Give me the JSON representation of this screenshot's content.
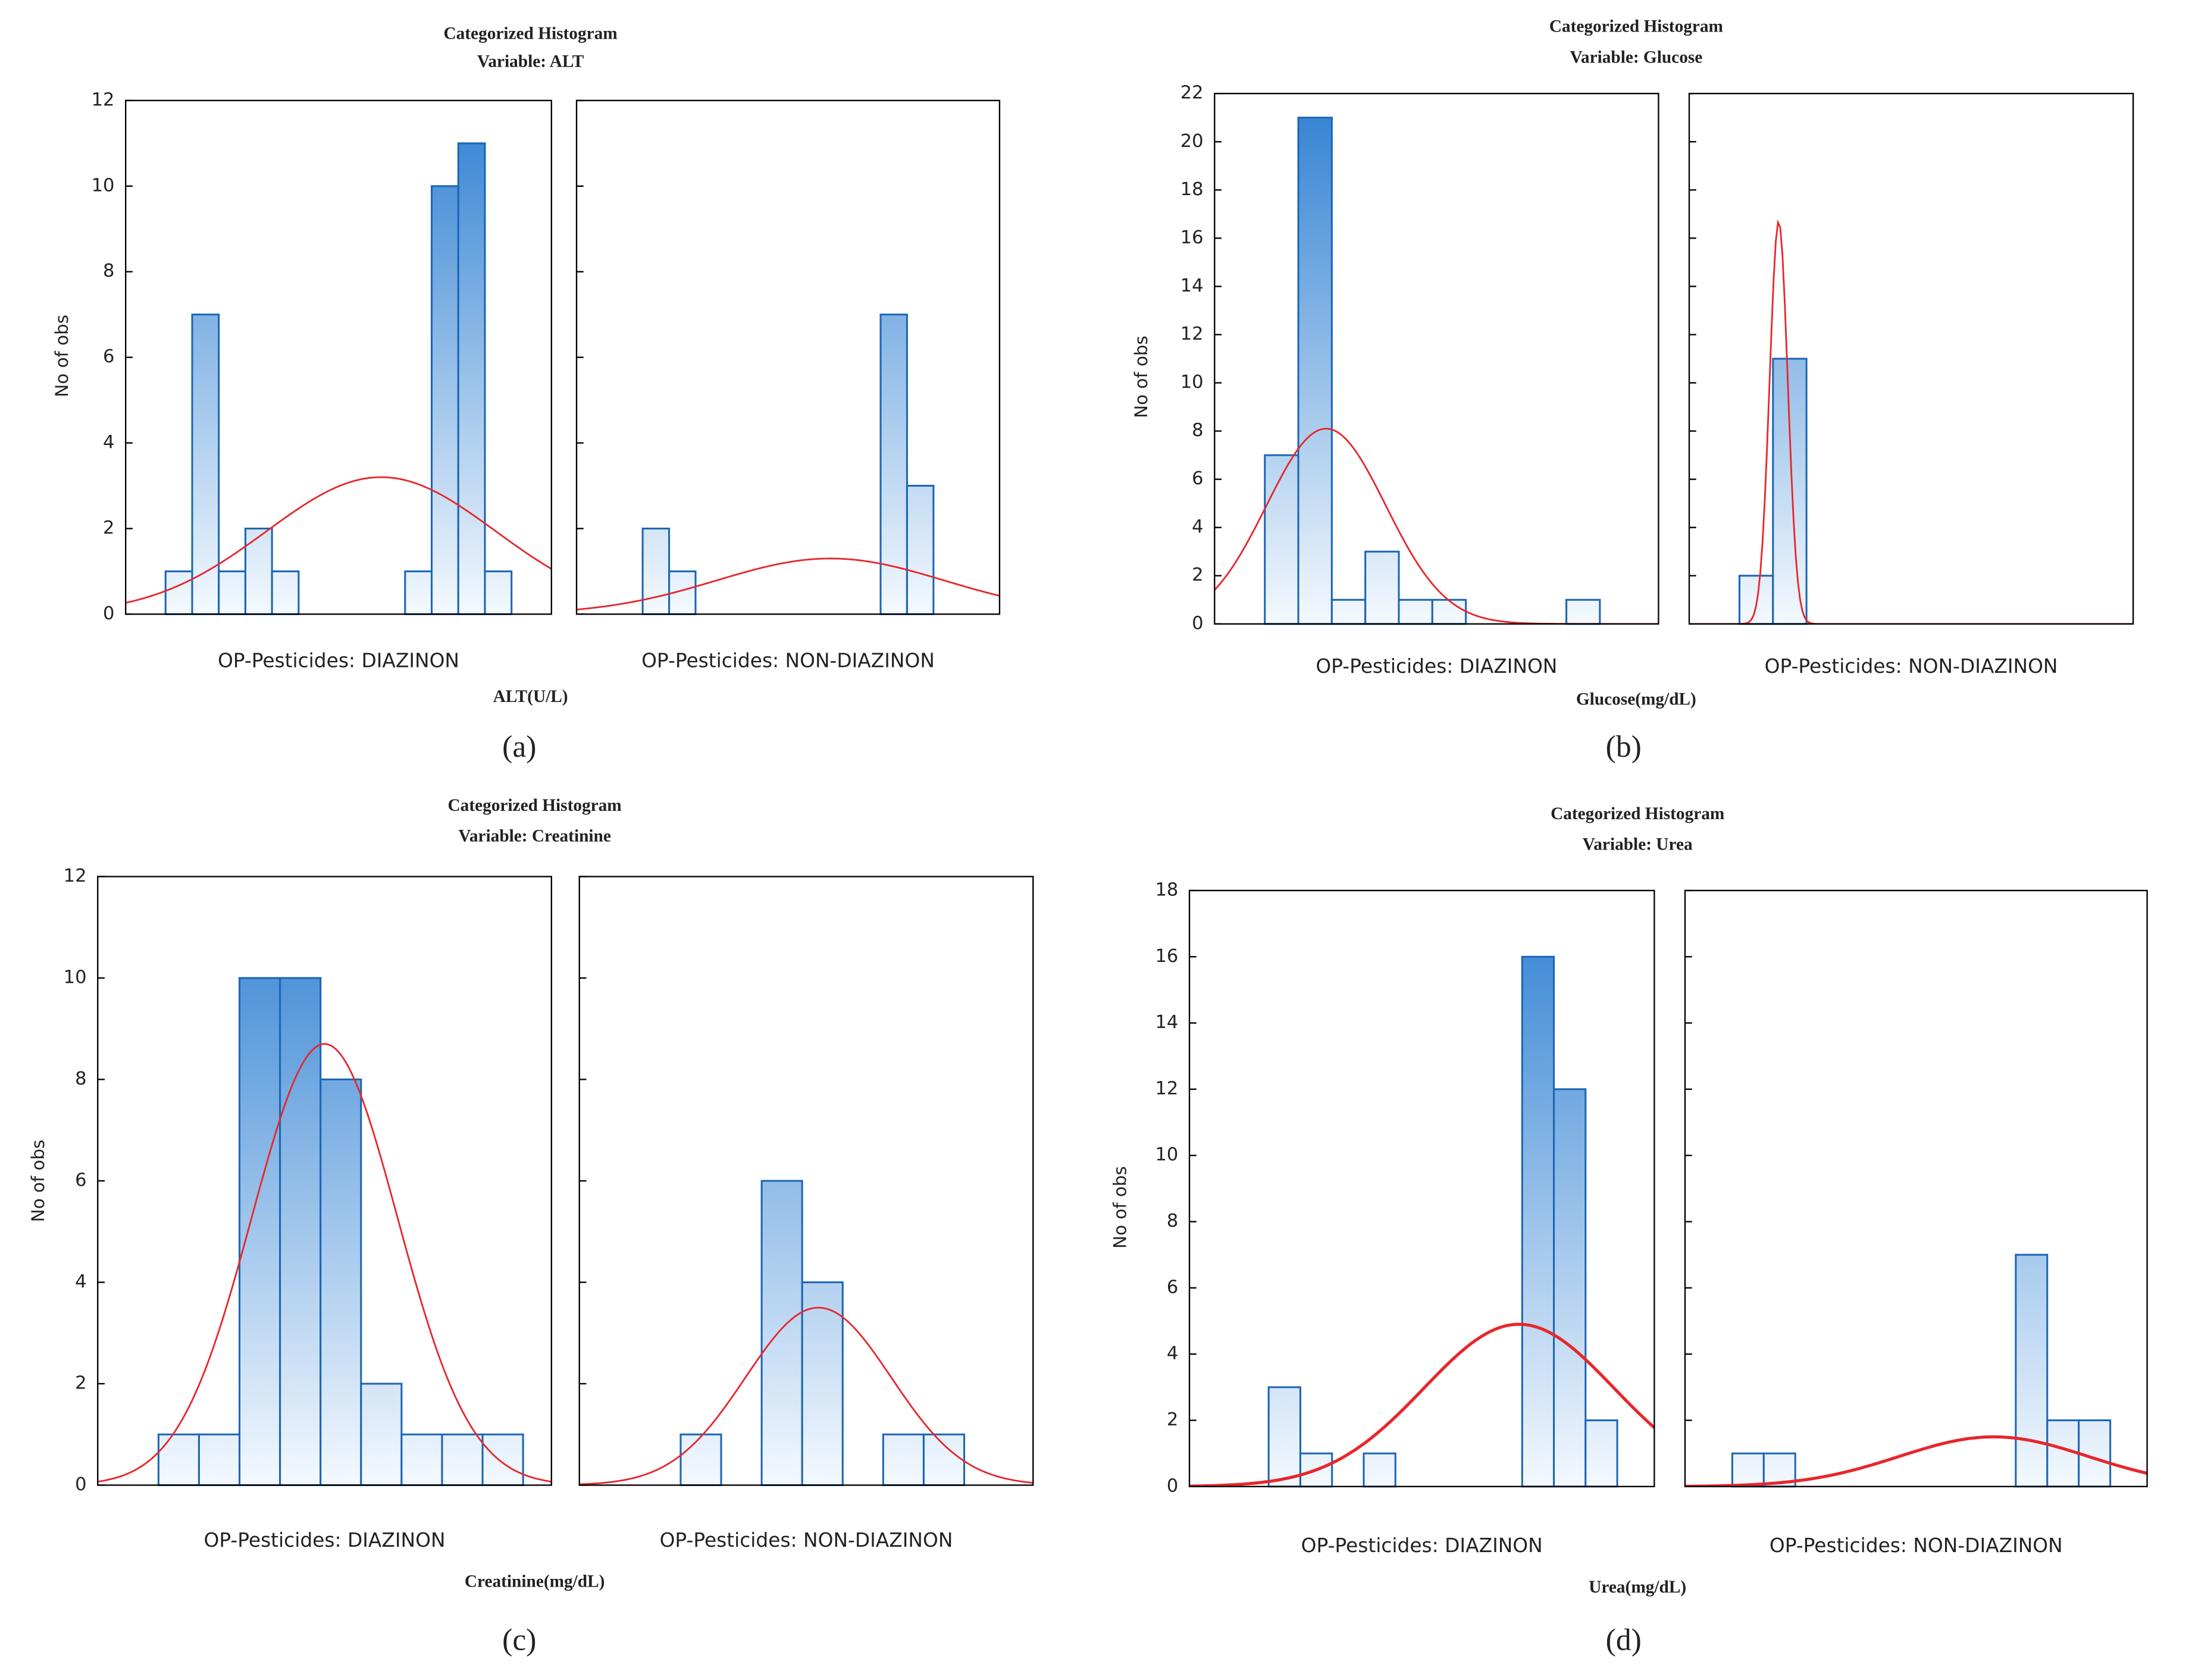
{
  "chart_data": [
    {
      "type": "histogram",
      "title": "Categorized Histogram",
      "subtitle": "Variable: ALT",
      "ylabel": "No of obs",
      "xlabel": "ALT(U/L)",
      "caption": "(a)",
      "color": "#2f80d2",
      "fit_color": "#e8262b",
      "ylim": [
        0,
        12
      ],
      "yticks": [
        0,
        2,
        4,
        6,
        8,
        10,
        12
      ],
      "xlim": [
        0,
        16
      ],
      "panels": [
        {
          "name": "OP-Pesticides: DIAZINON",
          "bins": [
            1.5,
            2.5,
            3.5,
            4.5,
            5.5,
            6.5,
            7.5,
            8.5,
            9.5,
            10.5,
            11.5,
            12.5,
            13.5,
            14.5
          ],
          "counts": [
            1,
            7,
            1,
            2,
            1,
            0,
            0,
            0,
            0,
            1,
            10,
            11,
            1
          ],
          "fit": {
            "peak": 3.2,
            "mean": 9.6,
            "sd": 4.3
          }
        },
        {
          "name": "OP-Pesticides: NON-DIAZINON",
          "bins": [
            2.5,
            3.5,
            4.5,
            5.5,
            6.5,
            7.5,
            8.5,
            9.5,
            10.5,
            11.5,
            12.5,
            13.5
          ],
          "counts": [
            2,
            1,
            0,
            0,
            0,
            0,
            0,
            0,
            0,
            7,
            3
          ],
          "fit": {
            "peak": 1.3,
            "mean": 9.6,
            "sd": 4.3
          }
        }
      ]
    },
    {
      "type": "histogram",
      "title": "Categorized Histogram",
      "subtitle": "Variable: Glucose",
      "ylabel": "No of obs",
      "xlabel": "Glucose(mg/dL)",
      "caption": "(b)",
      "color": "#2f80d2",
      "fit_color": "#e8262b",
      "ylim": [
        0,
        22
      ],
      "yticks": [
        0,
        2,
        4,
        6,
        8,
        10,
        12,
        14,
        16,
        18,
        20,
        22
      ],
      "xlim": [
        0,
        13.25
      ],
      "panels": [
        {
          "name": "OP-Pesticides: DIAZINON",
          "bins": [
            1.5,
            2.5,
            3.5,
            4.5,
            5.5,
            6.5,
            7.5,
            8.5,
            9.5,
            10.5,
            11.5
          ],
          "counts": [
            7,
            21,
            1,
            3,
            1,
            1,
            0,
            0,
            0,
            1
          ],
          "fit": {
            "peak": 8.1,
            "mean": 3.33,
            "sd": 1.78
          }
        },
        {
          "name": "OP-Pesticides: NON-DIAZINON",
          "bins": [
            1.5,
            2.5,
            3.5
          ],
          "counts": [
            2,
            11
          ],
          "fit": {
            "peak": 16.7,
            "mean": 2.67,
            "sd": 0.27
          }
        }
      ]
    },
    {
      "type": "histogram",
      "title": "Categorized Histogram",
      "subtitle": "Variable: Creatinine",
      "ylabel": "No of obs",
      "xlabel": "Creatinine(mg/dL)",
      "caption": "(c)",
      "color": "#2f80d2",
      "fit_color": "#e8262b",
      "ylim": [
        0,
        12
      ],
      "yticks": [
        0,
        2,
        4,
        6,
        8,
        10,
        12
      ],
      "xlim": [
        0,
        11.2
      ],
      "panels": [
        {
          "name": "OP-Pesticides: DIAZINON",
          "bins": [
            1.5,
            2.5,
            3.5,
            4.5,
            5.5,
            6.5,
            7.5,
            8.5,
            9.5,
            10.5
          ],
          "counts": [
            1,
            1,
            10,
            10,
            8,
            2,
            1,
            1,
            1
          ],
          "fit": {
            "peak": 8.7,
            "mean": 5.6,
            "sd": 1.8
          }
        },
        {
          "name": "OP-Pesticides: NON-DIAZINON",
          "bins": [
            2.5,
            3.5,
            4.5,
            5.5,
            6.5,
            7.5,
            8.5,
            9.5
          ],
          "counts": [
            1,
            0,
            6,
            4,
            0,
            1,
            1
          ],
          "fit": {
            "peak": 3.5,
            "mean": 5.9,
            "sd": 1.8
          }
        }
      ]
    },
    {
      "type": "histogram",
      "title": "Categorized Histogram",
      "subtitle": "Variable: Urea",
      "ylabel": "No of obs",
      "xlabel": "Urea(mg/dL)",
      "caption": "(d)",
      "color": "#2f80d2",
      "fit_color": "#e8262b",
      "ylim": [
        0,
        18
      ],
      "yticks": [
        0,
        2,
        4,
        6,
        8,
        10,
        12,
        14,
        16,
        18
      ],
      "xlim": [
        0,
        14.67
      ],
      "panels": [
        {
          "name": "OP-Pesticides: DIAZINON",
          "bins": [
            2.5,
            3.5,
            4.5,
            5.5,
            6.5,
            7.5,
            8.5,
            9.5,
            10.5,
            11.5,
            12.5,
            13.5
          ],
          "counts": [
            3,
            1,
            0,
            1,
            0,
            0,
            0,
            0,
            16,
            12,
            2
          ],
          "fit": {
            "peak": 4.9,
            "mean": 10.4,
            "sd": 3.0
          }
        },
        {
          "name": "OP-Pesticides: NON-DIAZINON",
          "bins": [
            1.5,
            2.5,
            3.5,
            4.5,
            5.5,
            6.5,
            7.5,
            8.5,
            9.5,
            10.5,
            11.5,
            12.5,
            13.5
          ],
          "counts": [
            1,
            1,
            0,
            0,
            0,
            0,
            0,
            0,
            0,
            7,
            2,
            2
          ],
          "fit": {
            "peak": 1.5,
            "mean": 9.8,
            "sd": 3.0
          }
        }
      ]
    }
  ]
}
